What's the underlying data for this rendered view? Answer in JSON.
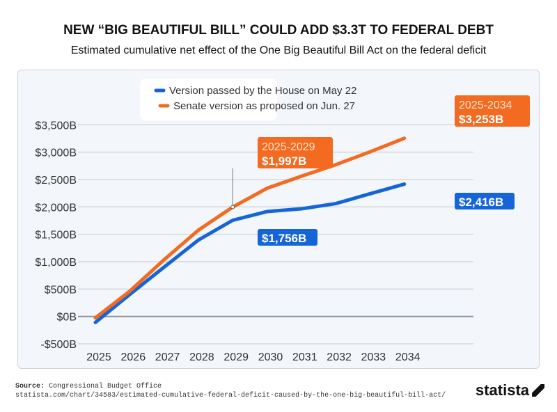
{
  "title": "NEW “BIG BEAUTIFUL BILL” COULD ADD $3.3T TO FEDERAL DEBT",
  "subtitle": "Estimated cumulative net effect of the One Big Beautiful Bill Act on the federal deficit",
  "source_label": "Source:",
  "source": "Congressional Budget Office",
  "url": "statista.com/chart/34583/estimated-cumulative-federal-deficit-caused-by-the-one-big-beautiful-bill-act/",
  "logo": "statista",
  "chart_data": {
    "type": "line",
    "title": "NEW “BIG BEAUTIFUL BILL” COULD ADD $3.3T TO FEDERAL DEBT",
    "x": [
      2025,
      2026,
      2027,
      2028,
      2029,
      2030,
      2031,
      2032,
      2033,
      2034
    ],
    "x_tick_labels": [
      "2025",
      "2026",
      "2027",
      "2028",
      "2029",
      "2030",
      "2031",
      "2032",
      "2033",
      "2034"
    ],
    "ylim": [
      -500,
      3500
    ],
    "y_ticks": [
      -500,
      0,
      500,
      1000,
      1500,
      2000,
      2500,
      3000,
      3500
    ],
    "y_tick_labels": [
      "-$500B",
      "$0B",
      "$500B",
      "$1,000B",
      "$1,500B",
      "$2,000B",
      "$2,500B",
      "$3,000B",
      "$3,500B"
    ],
    "grid": true,
    "legend_placement": "top-center",
    "series": [
      {
        "name": "Version passed by the House on May 22",
        "color": "#1565d8",
        "values": [
          -110,
          400,
          900,
          1395,
          1756,
          1915,
          1965,
          2060,
          2240,
          2416
        ]
      },
      {
        "name": "Senate version as proposed on Jun. 27",
        "color": "#f26b21",
        "values": [
          -25,
          460,
          1035,
          1575,
          1997,
          2340,
          2560,
          2770,
          3005,
          3253
        ]
      }
    ],
    "annotations": [
      {
        "series": 1,
        "x": 2029,
        "period": "2025-2029",
        "label": "$1,997B"
      },
      {
        "series": 0,
        "x": 2029,
        "label": "$1,756B"
      },
      {
        "series": 1,
        "x": 2034,
        "period": "2025-2034",
        "label": "$3,253B"
      },
      {
        "series": 0,
        "x": 2034,
        "label": "$2,416B"
      }
    ]
  }
}
